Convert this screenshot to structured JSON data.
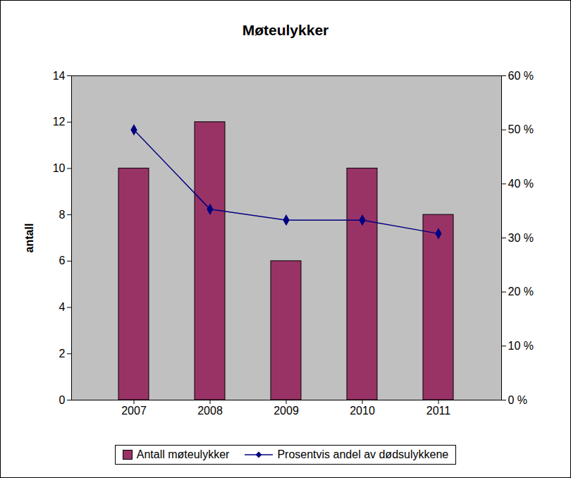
{
  "chart_data": {
    "type": "bar",
    "title": "Møteulykker",
    "categories": [
      "2007",
      "2008",
      "2009",
      "2010",
      "2011"
    ],
    "series": [
      {
        "name": "Antall møteulykker",
        "type": "bar",
        "color": "#993366",
        "values": [
          10,
          12,
          6,
          10,
          8
        ]
      },
      {
        "name": "Prosentvis andel av dødsulykkene",
        "type": "line",
        "color": "#000080",
        "marker": "diamond",
        "axis": "y2",
        "values": [
          50,
          35.3,
          33.3,
          33.3,
          30.8
        ]
      }
    ],
    "ylabel": "antall",
    "ylim": [
      0,
      14
    ],
    "yticks": [
      0,
      2,
      4,
      6,
      8,
      10,
      12,
      14
    ],
    "y2lim": [
      0,
      60
    ],
    "y2ticks": [
      {
        "value": 0,
        "label": "0 %"
      },
      {
        "value": 10,
        "label": "10 %"
      },
      {
        "value": 20,
        "label": "20 %"
      },
      {
        "value": 30,
        "label": "30 %"
      },
      {
        "value": 40,
        "label": "40 %"
      },
      {
        "value": 50,
        "label": "50 %"
      },
      {
        "value": 60,
        "label": "60 %"
      }
    ],
    "grid": false,
    "legend": "bottom"
  }
}
